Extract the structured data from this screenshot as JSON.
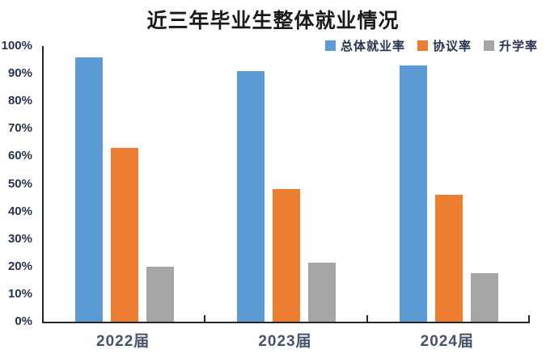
{
  "chart_data": {
    "type": "bar",
    "title": "近三年毕业生整体就业情况",
    "categories": [
      "2022届",
      "2023届",
      "2024届"
    ],
    "series": [
      {
        "name": "总体就业率",
        "color": "#5B9BD5",
        "values": [
          96,
          91,
          93
        ]
      },
      {
        "name": "协议率",
        "color": "#ED7D31",
        "values": [
          63,
          48,
          46
        ]
      },
      {
        "name": "升学率",
        "color": "#A5A5A5",
        "values": [
          20,
          21.5,
          17.5
        ]
      }
    ],
    "xlabel": "",
    "ylabel": "",
    "ylim": [
      0,
      100
    ],
    "y_tick_step": 10,
    "y_ticks": [
      "0%",
      "10%",
      "20%",
      "30%",
      "40%",
      "50%",
      "60%",
      "70%",
      "80%",
      "90%",
      "100%"
    ],
    "grid": false,
    "legend_position": "top-right",
    "axis_color": "#262626",
    "tick_label_color": "#26344E",
    "category_label_color": "#44546A"
  }
}
